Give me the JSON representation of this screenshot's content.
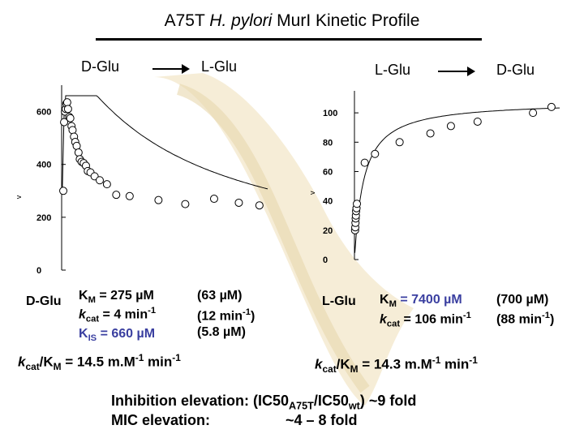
{
  "title_parts": {
    "prefix": "A75T ",
    "species": "H. pylori",
    "suffix": " MurI Kinetic Profile"
  },
  "reactions": {
    "left": {
      "from": "D-Glu",
      "to": "L-Glu"
    },
    "right": {
      "from": "L-Glu",
      "to": "D-Glu"
    }
  },
  "left_params": {
    "substrate": "D-Glu",
    "km_label": "K",
    "km_sub": "M",
    "km_value": " = 275 µM",
    "kcat_label": "k",
    "kcat_sub": "cat",
    "kcat_value": " = 4 min",
    "kcat_sup": "-1",
    "kis_label": "K",
    "kis_sub": "IS",
    "kis_value": " = 660 µM",
    "wt_km": "(63 µM)",
    "wt_kcat_pre": "(12 min",
    "wt_kcat_sup": "-1",
    "wt_kcat_post": ")",
    "wt_kis": "(5.8 µM)",
    "eff_label": "k",
    "eff_sub": "cat",
    "eff_mid": "/K",
    "eff_sub2": "M",
    "eff_value": " = 14.5 m.M",
    "eff_sup": "-1",
    "eff_unit": " min",
    "eff_sup2": "-1"
  },
  "right_params": {
    "substrate": "L-Glu",
    "km_label": "K",
    "km_sub": "M",
    "km_value": " = 7400 µM",
    "kcat_label": "k",
    "kcat_sub": "cat",
    "kcat_value": " = 106 min",
    "kcat_sup": "-1",
    "wt_km": "(700 µM)",
    "wt_kcat_pre": "(88 min",
    "wt_kcat_sup": "-1",
    "wt_kcat_post": ")",
    "eff_label": "k",
    "eff_sub": "cat",
    "eff_mid": "/K",
    "eff_sub2": "M",
    "eff_value": " = 14.3 m.M",
    "eff_sup": "-1",
    "eff_unit": " min",
    "eff_sup2": "-1"
  },
  "footer": {
    "line1_pre": "Inhibition elevation: (IC50",
    "line1_sub1": "A75T",
    "line1_mid": "/IC50",
    "line1_sub2": "wt",
    "line1_post": ") ~9 fold",
    "line2_label": "MIC elevation:",
    "line2_value": "~4 – 8 fold"
  },
  "colors": {
    "accent_blue": "#3a3fa0",
    "watermark": "#f2e4c2"
  },
  "chart_data": [
    {
      "type": "scatter",
      "title": "",
      "reaction": "D-Glu → L-Glu",
      "xlabel": "",
      "ylabel": "v",
      "yticks": [
        0,
        200,
        400,
        600
      ],
      "ylim": [
        0,
        700
      ],
      "xlim": [
        0,
        100
      ],
      "grid": false,
      "fit_curve": true,
      "points": [
        {
          "x": 0.8,
          "y": 300
        },
        {
          "x": 1.2,
          "y": 560
        },
        {
          "x": 1.6,
          "y": 600
        },
        {
          "x": 2.0,
          "y": 610
        },
        {
          "x": 2.3,
          "y": 630
        },
        {
          "x": 2.7,
          "y": 635
        },
        {
          "x": 3.1,
          "y": 610
        },
        {
          "x": 3.7,
          "y": 580
        },
        {
          "x": 4.2,
          "y": 575
        },
        {
          "x": 4.8,
          "y": 545
        },
        {
          "x": 5.3,
          "y": 530
        },
        {
          "x": 6.0,
          "y": 505
        },
        {
          "x": 6.6,
          "y": 485
        },
        {
          "x": 7.3,
          "y": 470
        },
        {
          "x": 8.2,
          "y": 445
        },
        {
          "x": 8.8,
          "y": 420
        },
        {
          "x": 9.7,
          "y": 410
        },
        {
          "x": 10.7,
          "y": 405
        },
        {
          "x": 11.8,
          "y": 395
        },
        {
          "x": 12.7,
          "y": 375
        },
        {
          "x": 14.0,
          "y": 370
        },
        {
          "x": 16.0,
          "y": 355
        },
        {
          "x": 18.5,
          "y": 340
        },
        {
          "x": 22.0,
          "y": 325
        },
        {
          "x": 26.5,
          "y": 285
        },
        {
          "x": 33.0,
          "y": 280
        },
        {
          "x": 47.0,
          "y": 265
        },
        {
          "x": 60.0,
          "y": 250
        },
        {
          "x": 74.0,
          "y": 270
        },
        {
          "x": 86.0,
          "y": 255
        },
        {
          "x": 96.0,
          "y": 245
        }
      ]
    },
    {
      "type": "scatter",
      "title": "",
      "reaction": "L-Glu → D-Glu",
      "xlabel": "",
      "ylabel": "v",
      "yticks": [
        0,
        20,
        40,
        60,
        80,
        100
      ],
      "ylim": [
        0,
        115
      ],
      "xlim": [
        0,
        100
      ],
      "grid": false,
      "fit_curve": true,
      "points": [
        {
          "x": 0.3,
          "y": 20
        },
        {
          "x": 0.4,
          "y": 22
        },
        {
          "x": 0.5,
          "y": 25
        },
        {
          "x": 0.6,
          "y": 28
        },
        {
          "x": 0.7,
          "y": 30
        },
        {
          "x": 0.8,
          "y": 33
        },
        {
          "x": 1.0,
          "y": 35
        },
        {
          "x": 1.2,
          "y": 38
        },
        {
          "x": 5.0,
          "y": 66
        },
        {
          "x": 10.0,
          "y": 72
        },
        {
          "x": 22.0,
          "y": 80
        },
        {
          "x": 37.0,
          "y": 86
        },
        {
          "x": 47.0,
          "y": 91
        },
        {
          "x": 60.0,
          "y": 94
        },
        {
          "x": 87.0,
          "y": 100
        },
        {
          "x": 96.0,
          "y": 104
        }
      ]
    }
  ]
}
